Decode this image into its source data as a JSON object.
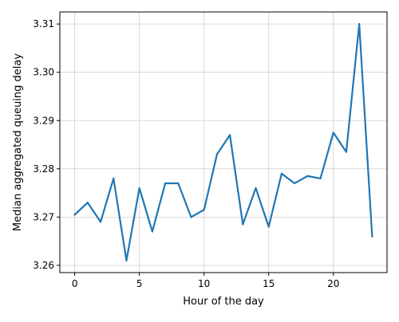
{
  "chart_data": {
    "type": "line",
    "xlabel": "Hour of the day",
    "ylabel": "Median aggregated queuing delay",
    "xlim": [
      -1.15,
      24.15
    ],
    "ylim": [
      3.2585,
      3.3125
    ],
    "x_ticks": [
      0,
      5,
      10,
      15,
      20
    ],
    "x_tick_labels": [
      "0",
      "5",
      "10",
      "15",
      "20"
    ],
    "y_ticks": [
      3.26,
      3.27,
      3.28,
      3.29,
      3.3,
      3.31
    ],
    "y_tick_labels": [
      "3.26",
      "3.27",
      "3.28",
      "3.29",
      "3.30",
      "3.31"
    ],
    "grid": true,
    "series": [
      {
        "color": "#1f77b4",
        "x": [
          0,
          1,
          2,
          3,
          4,
          5,
          6,
          7,
          8,
          9,
          10,
          11,
          12,
          13,
          14,
          15,
          16,
          17,
          18,
          19,
          20,
          21,
          22,
          23
        ],
        "values": [
          3.2705,
          3.273,
          3.269,
          3.278,
          3.261,
          3.276,
          3.267,
          3.277,
          3.277,
          3.27,
          3.2715,
          3.283,
          3.287,
          3.2685,
          3.276,
          3.268,
          3.279,
          3.277,
          3.2785,
          3.278,
          3.2875,
          3.2835,
          3.31,
          3.266
        ]
      }
    ]
  }
}
